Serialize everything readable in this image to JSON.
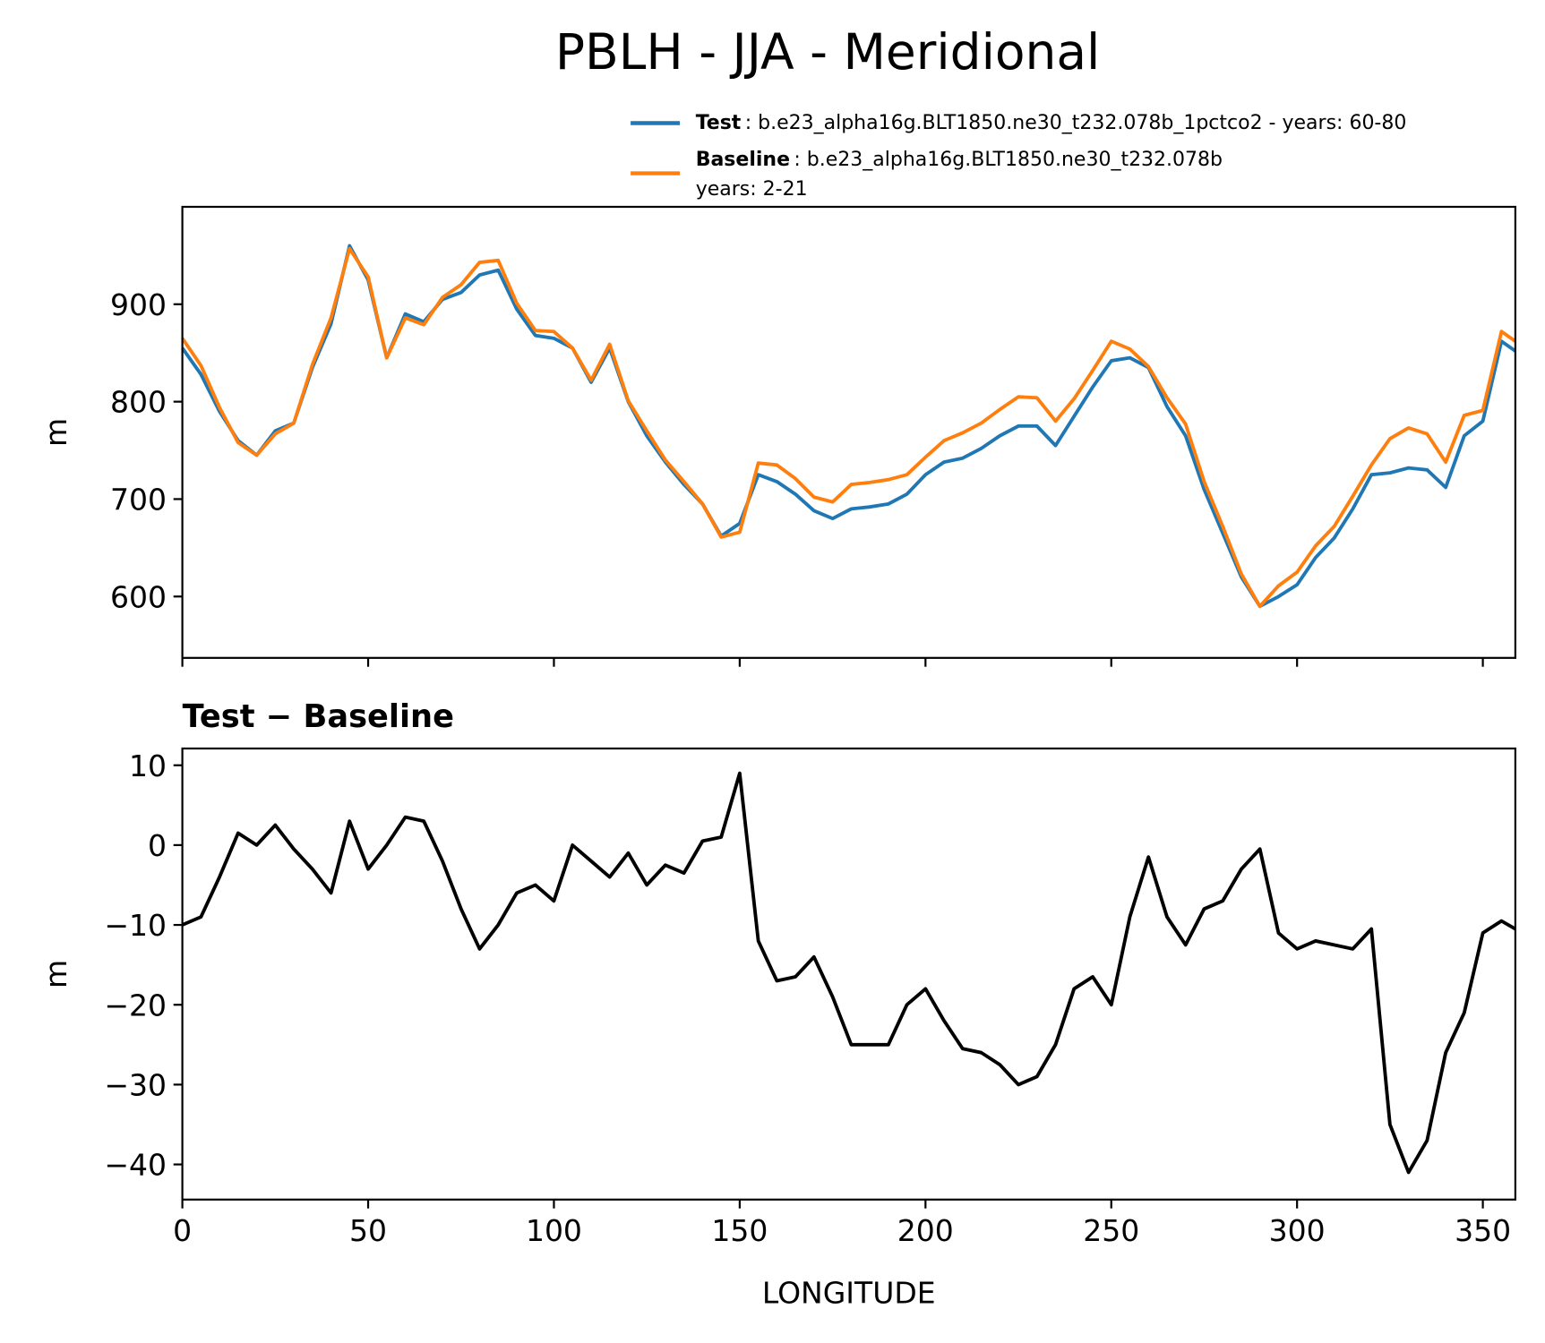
{
  "chart_data": [
    {
      "type": "line",
      "title": "PBLH - JJA - Meridional",
      "ylabel": "m",
      "x": [
        0,
        5,
        10,
        15,
        20,
        25,
        30,
        35,
        40,
        45,
        50,
        55,
        60,
        65,
        70,
        75,
        80,
        85,
        90,
        95,
        100,
        105,
        110,
        115,
        120,
        125,
        130,
        135,
        140,
        145,
        150,
        155,
        160,
        165,
        170,
        175,
        180,
        185,
        190,
        195,
        200,
        205,
        210,
        215,
        220,
        225,
        230,
        235,
        240,
        245,
        250,
        255,
        260,
        265,
        270,
        275,
        280,
        285,
        290,
        295,
        300,
        305,
        310,
        315,
        320,
        325,
        330,
        335,
        340,
        345,
        350,
        355,
        358.75
      ],
      "xlim": [
        0,
        358.75
      ],
      "ylim": [
        537,
        1000
      ],
      "yticks": [
        600,
        700,
        800,
        900
      ],
      "series": [
        {
          "name": "Test",
          "description": ": b.e23_alpha16g.BLT1850.ne30_t232.078b_1pctco2 - years: 60-80",
          "color": "#1f77b4",
          "values": [
            855,
            828,
            790,
            760,
            745,
            770,
            778,
            835,
            880,
            960,
            925,
            845,
            890,
            882,
            905,
            912,
            930,
            935,
            895,
            868,
            865,
            855,
            820,
            855,
            800,
            765,
            738,
            715,
            695,
            662,
            675,
            725,
            718,
            705,
            688,
            680,
            690,
            692,
            695,
            705,
            725,
            738,
            742,
            752,
            765,
            775,
            775,
            755,
            785,
            815,
            842,
            845,
            835,
            795,
            765,
            710,
            665,
            620,
            590,
            600,
            612,
            640,
            660,
            690,
            725,
            727,
            732,
            730,
            712,
            765,
            780,
            862,
            852
          ]
        },
        {
          "name": "Baseline",
          "description": ": b.e23_alpha16g.BLT1850.ne30_t232.078b",
          "description2": "years: 2-21",
          "color": "#ff7f0e",
          "values": [
            865,
            837,
            794,
            758,
            745,
            767,
            778,
            838,
            886,
            957,
            928,
            845,
            886,
            879,
            907,
            920,
            943,
            945,
            901,
            873,
            872,
            855,
            822,
            859,
            801,
            770,
            740,
            718,
            695,
            661,
            666,
            737,
            735,
            721,
            702,
            697,
            715,
            717,
            720,
            725,
            743,
            760,
            768,
            778,
            792,
            805,
            804,
            780,
            803,
            832,
            862,
            854,
            836,
            804,
            777,
            718,
            672,
            623,
            590,
            611,
            625,
            652,
            672,
            703,
            735,
            762,
            773,
            767,
            738,
            786,
            791,
            872,
            862
          ]
        }
      ]
    },
    {
      "type": "line",
      "title": "Test − Baseline",
      "xlabel": "LONGITUDE",
      "ylabel": "m",
      "x": [
        0,
        5,
        10,
        15,
        20,
        25,
        30,
        35,
        40,
        45,
        50,
        55,
        60,
        65,
        70,
        75,
        80,
        85,
        90,
        95,
        100,
        105,
        110,
        115,
        120,
        125,
        130,
        135,
        140,
        145,
        150,
        155,
        160,
        165,
        170,
        175,
        180,
        185,
        190,
        195,
        200,
        205,
        210,
        215,
        220,
        225,
        230,
        235,
        240,
        245,
        250,
        255,
        260,
        265,
        270,
        275,
        280,
        285,
        290,
        295,
        300,
        305,
        310,
        315,
        320,
        325,
        330,
        335,
        340,
        345,
        350,
        355,
        358.75
      ],
      "xlim": [
        0,
        358.75
      ],
      "ylim": [
        -44.4,
        12.1
      ],
      "xticks": [
        0,
        50,
        100,
        150,
        200,
        250,
        300,
        350
      ],
      "yticks": [
        {
          "value": 10,
          "label": "10"
        },
        {
          "value": 0,
          "label": "0"
        },
        {
          "value": -10,
          "label": "−10"
        },
        {
          "value": -20,
          "label": "−20"
        },
        {
          "value": -30,
          "label": "−30"
        },
        {
          "value": -40,
          "label": "−40"
        }
      ],
      "series": [
        {
          "color": "#000000",
          "values": [
            -10,
            -9,
            -4,
            1.5,
            0,
            2.5,
            -0.5,
            -3,
            -6,
            3,
            -3,
            0,
            3.5,
            3,
            -2,
            -8,
            -13,
            -10,
            -6,
            -5,
            -7,
            0,
            -2,
            -4,
            -1,
            -5,
            -2.5,
            -3.5,
            0.5,
            1,
            9,
            -12,
            -17,
            -16.5,
            -14,
            -19,
            -25,
            -25,
            -25,
            -20,
            -18,
            -22,
            -25.5,
            -26,
            -27.5,
            -30,
            -29,
            -25,
            -18,
            -16.5,
            -20,
            -9,
            -1.5,
            -9,
            -12.5,
            -8,
            -7,
            -3,
            -0.5,
            -11,
            -13,
            -12,
            -12.5,
            -13,
            -10.5,
            -35,
            -41,
            -37,
            -26,
            -21,
            -11,
            -9.5,
            -10.5
          ]
        }
      ]
    }
  ]
}
